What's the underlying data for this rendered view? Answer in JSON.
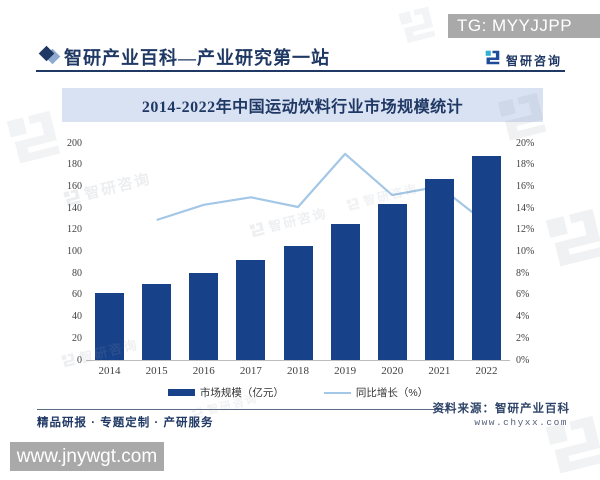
{
  "overlay": {
    "tg_badge": "TG: MYYJJPP",
    "site_watermark": "www.jnywgt.com"
  },
  "header": {
    "title": "智研产业百科—产业研究第一站",
    "brand": "智研咨询"
  },
  "chart_data": {
    "type": "bar+line combo",
    "title": "2014-2022年中国运动饮料行业市场规模统计",
    "categories": [
      "2014",
      "2015",
      "2016",
      "2017",
      "2018",
      "2019",
      "2020",
      "2021",
      "2022"
    ],
    "series": [
      {
        "name": "市场规模（亿元）",
        "type": "bar",
        "axis": "left",
        "color": "#17428a",
        "values": [
          62,
          70,
          80,
          92,
          105,
          125,
          144,
          167,
          188
        ]
      },
      {
        "name": "同比增长（%）",
        "type": "line",
        "axis": "right",
        "color": "#a3c7e6",
        "values": [
          null,
          12.9,
          14.3,
          15.0,
          14.1,
          19.0,
          15.2,
          16.0,
          12.6
        ]
      }
    ],
    "left_axis": {
      "min": 0,
      "max": 200,
      "step": 20
    },
    "right_axis": {
      "min": 0,
      "max": 20,
      "step": 2,
      "suffix": "%"
    },
    "legend_position": "bottom",
    "grid": false
  },
  "footer": {
    "services": "精品研报 · 专题定制 · 产研服务",
    "source_label": "资料来源：智研产业百科",
    "source_site": "www.chyxx.com"
  },
  "watermark_text": "智研咨询"
}
